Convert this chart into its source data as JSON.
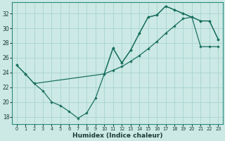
{
  "xlabel": "Humidex (Indice chaleur)",
  "xlim": [
    -0.5,
    23.5
  ],
  "ylim": [
    17.0,
    33.5
  ],
  "yticks": [
    18,
    20,
    22,
    24,
    26,
    28,
    30,
    32
  ],
  "xticks": [
    0,
    1,
    2,
    3,
    4,
    5,
    6,
    7,
    8,
    9,
    10,
    11,
    12,
    13,
    14,
    15,
    16,
    17,
    18,
    19,
    20,
    21,
    22,
    23
  ],
  "bg_color": "#cce9e5",
  "grid_color": "#a8d4cf",
  "line_color": "#1a7060",
  "curve_dip_x": [
    0,
    1,
    2,
    3,
    4,
    5,
    6,
    7,
    8,
    9,
    10,
    11,
    12,
    13,
    14,
    15,
    16,
    17,
    18,
    19,
    20,
    21,
    22,
    23
  ],
  "curve_dip_y": [
    25.0,
    23.8,
    22.5,
    21.5,
    20.0,
    19.5,
    18.7,
    17.8,
    18.5,
    20.5,
    23.8,
    27.3,
    25.3,
    27.0,
    29.3,
    31.5,
    31.8,
    33.0,
    32.5,
    32.0,
    31.5,
    31.0,
    31.0,
    28.5
  ],
  "curve_diag_x": [
    0,
    1,
    2,
    10,
    11,
    12,
    13,
    14,
    15,
    16,
    17,
    18,
    19,
    20,
    21,
    22,
    23
  ],
  "curve_diag_y": [
    25.0,
    23.8,
    22.5,
    23.8,
    24.3,
    24.8,
    25.5,
    26.3,
    27.2,
    28.2,
    29.3,
    30.3,
    31.3,
    31.5,
    27.5,
    27.5,
    27.5
  ],
  "curve_upper_x": [
    10,
    11,
    12,
    13,
    14,
    15,
    16,
    17,
    18,
    19,
    20,
    21,
    22,
    23
  ],
  "curve_upper_y": [
    23.8,
    27.3,
    25.3,
    27.0,
    29.3,
    31.5,
    31.8,
    33.0,
    32.5,
    32.0,
    31.5,
    31.0,
    31.0,
    28.5
  ]
}
